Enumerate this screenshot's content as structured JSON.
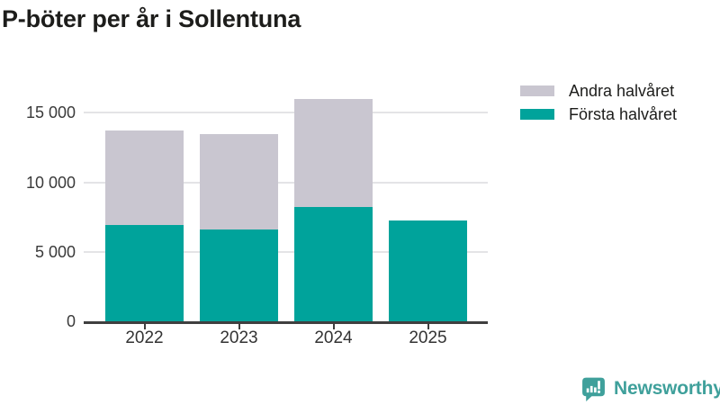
{
  "title": "P-böter per år i Sollentuna",
  "chart_data": {
    "type": "bar",
    "stacked": true,
    "title": "P-böter per år i Sollentuna",
    "categories": [
      "2022",
      "2023",
      "2024",
      "2025"
    ],
    "series": [
      {
        "name": "Första halvåret",
        "color": "#00a39b",
        "values": [
          6950,
          6600,
          8250,
          7250
        ]
      },
      {
        "name": "Andra halvåret",
        "color": "#c9c6d0",
        "values": [
          6750,
          6850,
          7750,
          0
        ]
      }
    ],
    "totals": [
      13700,
      13450,
      16000,
      7250
    ],
    "xlabel": "",
    "ylabel": "",
    "ylim": [
      0,
      16500
    ],
    "yticks": [
      0,
      5000,
      10000,
      15000
    ],
    "ytick_labels": [
      "0",
      "5 000",
      "10 000",
      "15 000"
    ],
    "grid": true,
    "legend_position": "top-right"
  },
  "legend": {
    "items": [
      {
        "label": "Andra halvåret",
        "color": "#c9c6d0",
        "series": "Andra halvåret"
      },
      {
        "label": "Första halvåret",
        "color": "#00a39b",
        "series": "Första halvåret"
      }
    ]
  },
  "branding": {
    "name": "Newsworthy",
    "color": "#3fa09b",
    "icon": "newsworthy-speech-bubble-bar-chart-icon"
  },
  "colors": {
    "first_half": "#00a39b",
    "second_half": "#c9c6d0",
    "axis": "#3f3f3f",
    "gridline": "#e4e4e6",
    "title_text": "#1d1d1b",
    "tick_text": "#3a3a3a",
    "background": "#ffffff"
  }
}
